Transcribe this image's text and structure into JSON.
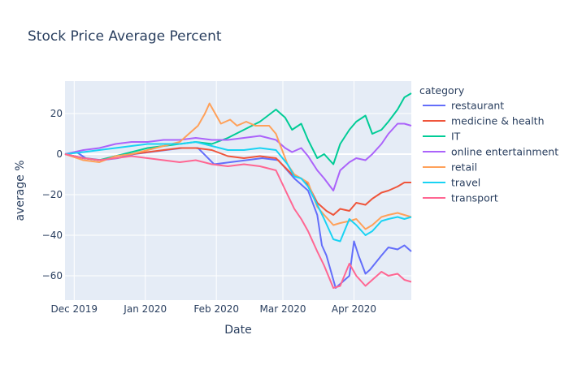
{
  "chart_data": {
    "type": "line",
    "title": "Stock Price Average Percent",
    "xlabel": "Date",
    "ylabel": "average %",
    "x_ticks": [
      {
        "date": "2019-12-01",
        "label": "Dec 2019"
      },
      {
        "date": "2020-01-01",
        "label": "Jan 2020"
      },
      {
        "date": "2020-02-01",
        "label": "Feb 2020"
      },
      {
        "date": "2020-03-01",
        "label": "Mar 2020"
      },
      {
        "date": "2020-04-01",
        "label": "Apr 2020"
      }
    ],
    "y_ticks": [
      20,
      0,
      -20,
      -40,
      -60
    ],
    "xlim": [
      "2019-11-27",
      "2020-04-26"
    ],
    "ylim": [
      -72,
      36
    ],
    "grid": true,
    "legend": {
      "title": "category",
      "position": "right"
    },
    "series": [
      {
        "name": "restaurant",
        "color": "#636efa",
        "points": [
          [
            "2019-11-27",
            0
          ],
          [
            "2019-12-02",
            1
          ],
          [
            "2019-12-06",
            -2
          ],
          [
            "2019-12-13",
            -3
          ],
          [
            "2019-12-20",
            -2
          ],
          [
            "2019-12-27",
            0
          ],
          [
            "2020-01-03",
            1
          ],
          [
            "2020-01-10",
            2
          ],
          [
            "2020-01-17",
            3
          ],
          [
            "2020-01-24",
            3
          ],
          [
            "2020-01-31",
            -5
          ],
          [
            "2020-02-07",
            -4
          ],
          [
            "2020-02-14",
            -3
          ],
          [
            "2020-02-21",
            -2
          ],
          [
            "2020-02-28",
            -3
          ],
          [
            "2020-03-06",
            -12
          ],
          [
            "2020-03-09",
            -15
          ],
          [
            "2020-03-12",
            -18
          ],
          [
            "2020-03-16",
            -30
          ],
          [
            "2020-03-18",
            -45
          ],
          [
            "2020-03-20",
            -50
          ],
          [
            "2020-03-23",
            -62
          ],
          [
            "2020-03-24",
            -66
          ],
          [
            "2020-03-27",
            -63
          ],
          [
            "2020-03-30",
            -60
          ],
          [
            "2020-04-01",
            -43
          ],
          [
            "2020-04-03",
            -50
          ],
          [
            "2020-04-06",
            -59
          ],
          [
            "2020-04-08",
            -57
          ],
          [
            "2020-04-13",
            -50
          ],
          [
            "2020-04-16",
            -46
          ],
          [
            "2020-04-20",
            -47
          ],
          [
            "2020-04-23",
            -45
          ],
          [
            "2020-04-26",
            -48
          ]
        ]
      },
      {
        "name": "medicine & health",
        "color": "#ef553b",
        "points": [
          [
            "2019-11-27",
            0
          ],
          [
            "2019-12-05",
            -2
          ],
          [
            "2019-12-12",
            -3
          ],
          [
            "2019-12-19",
            -1
          ],
          [
            "2019-12-26",
            0
          ],
          [
            "2020-01-02",
            1
          ],
          [
            "2020-01-09",
            2
          ],
          [
            "2020-01-16",
            3
          ],
          [
            "2020-01-23",
            3
          ],
          [
            "2020-01-30",
            2
          ],
          [
            "2020-02-06",
            -1
          ],
          [
            "2020-02-13",
            -2
          ],
          [
            "2020-02-20",
            -1
          ],
          [
            "2020-02-27",
            -2
          ],
          [
            "2020-03-05",
            -10
          ],
          [
            "2020-03-09",
            -12
          ],
          [
            "2020-03-12",
            -15
          ],
          [
            "2020-03-16",
            -24
          ],
          [
            "2020-03-18",
            -26
          ],
          [
            "2020-03-20",
            -28
          ],
          [
            "2020-03-23",
            -30
          ],
          [
            "2020-03-26",
            -27
          ],
          [
            "2020-03-30",
            -28
          ],
          [
            "2020-04-02",
            -24
          ],
          [
            "2020-04-06",
            -25
          ],
          [
            "2020-04-09",
            -22
          ],
          [
            "2020-04-13",
            -19
          ],
          [
            "2020-04-16",
            -18
          ],
          [
            "2020-04-20",
            -16
          ],
          [
            "2020-04-23",
            -14
          ],
          [
            "2020-04-26",
            -14
          ]
        ]
      },
      {
        "name": "IT",
        "color": "#00cc96",
        "points": [
          [
            "2019-11-27",
            0
          ],
          [
            "2019-12-05",
            -2
          ],
          [
            "2019-12-12",
            -3
          ],
          [
            "2019-12-19",
            -1
          ],
          [
            "2019-12-26",
            1
          ],
          [
            "2020-01-02",
            3
          ],
          [
            "2020-01-09",
            4
          ],
          [
            "2020-01-16",
            5
          ],
          [
            "2020-01-23",
            6
          ],
          [
            "2020-01-30",
            5
          ],
          [
            "2020-02-06",
            8
          ],
          [
            "2020-02-13",
            12
          ],
          [
            "2020-02-20",
            16
          ],
          [
            "2020-02-27",
            22
          ],
          [
            "2020-03-02",
            18
          ],
          [
            "2020-03-05",
            12
          ],
          [
            "2020-03-09",
            15
          ],
          [
            "2020-03-12",
            7
          ],
          [
            "2020-03-16",
            -2
          ],
          [
            "2020-03-19",
            0
          ],
          [
            "2020-03-23",
            -5
          ],
          [
            "2020-03-26",
            5
          ],
          [
            "2020-03-30",
            12
          ],
          [
            "2020-04-02",
            16
          ],
          [
            "2020-04-06",
            19
          ],
          [
            "2020-04-09",
            10
          ],
          [
            "2020-04-13",
            12
          ],
          [
            "2020-04-16",
            16
          ],
          [
            "2020-04-20",
            22
          ],
          [
            "2020-04-23",
            28
          ],
          [
            "2020-04-26",
            30
          ]
        ]
      },
      {
        "name": "online entertainment",
        "color": "#ab63fa",
        "points": [
          [
            "2019-11-27",
            0
          ],
          [
            "2019-12-05",
            2
          ],
          [
            "2019-12-12",
            3
          ],
          [
            "2019-12-19",
            5
          ],
          [
            "2019-12-26",
            6
          ],
          [
            "2020-01-02",
            6
          ],
          [
            "2020-01-09",
            7
          ],
          [
            "2020-01-16",
            7
          ],
          [
            "2020-01-23",
            8
          ],
          [
            "2020-01-30",
            7
          ],
          [
            "2020-02-06",
            7
          ],
          [
            "2020-02-13",
            8
          ],
          [
            "2020-02-20",
            9
          ],
          [
            "2020-02-27",
            7
          ],
          [
            "2020-03-02",
            3
          ],
          [
            "2020-03-05",
            1
          ],
          [
            "2020-03-09",
            3
          ],
          [
            "2020-03-12",
            -1
          ],
          [
            "2020-03-16",
            -8
          ],
          [
            "2020-03-19",
            -12
          ],
          [
            "2020-03-23",
            -18
          ],
          [
            "2020-03-26",
            -8
          ],
          [
            "2020-03-30",
            -4
          ],
          [
            "2020-04-02",
            -2
          ],
          [
            "2020-04-06",
            -3
          ],
          [
            "2020-04-09",
            0
          ],
          [
            "2020-04-13",
            5
          ],
          [
            "2020-04-16",
            10
          ],
          [
            "2020-04-20",
            15
          ],
          [
            "2020-04-23",
            15
          ],
          [
            "2020-04-26",
            14
          ]
        ]
      },
      {
        "name": "retail",
        "color": "#ffa15a",
        "points": [
          [
            "2019-11-27",
            0
          ],
          [
            "2019-12-05",
            -3
          ],
          [
            "2019-12-12",
            -4
          ],
          [
            "2019-12-19",
            -1
          ],
          [
            "2019-12-26",
            0
          ],
          [
            "2020-01-02",
            2
          ],
          [
            "2020-01-09",
            4
          ],
          [
            "2020-01-16",
            6
          ],
          [
            "2020-01-20",
            10
          ],
          [
            "2020-01-24",
            14
          ],
          [
            "2020-01-27",
            20
          ],
          [
            "2020-01-29",
            25
          ],
          [
            "2020-02-03",
            15
          ],
          [
            "2020-02-07",
            17
          ],
          [
            "2020-02-10",
            14
          ],
          [
            "2020-02-14",
            16
          ],
          [
            "2020-02-18",
            14
          ],
          [
            "2020-02-24",
            14
          ],
          [
            "2020-02-27",
            10
          ],
          [
            "2020-03-03",
            -5
          ],
          [
            "2020-03-06",
            -10
          ],
          [
            "2020-03-09",
            -12
          ],
          [
            "2020-03-12",
            -14
          ],
          [
            "2020-03-16",
            -26
          ],
          [
            "2020-03-19",
            -30
          ],
          [
            "2020-03-23",
            -35
          ],
          [
            "2020-03-26",
            -34
          ],
          [
            "2020-03-30",
            -33
          ],
          [
            "2020-04-02",
            -32
          ],
          [
            "2020-04-06",
            -37
          ],
          [
            "2020-04-09",
            -35
          ],
          [
            "2020-04-13",
            -31
          ],
          [
            "2020-04-16",
            -30
          ],
          [
            "2020-04-20",
            -29
          ],
          [
            "2020-04-23",
            -30
          ],
          [
            "2020-04-26",
            -31
          ]
        ]
      },
      {
        "name": "travel",
        "color": "#19d3f3",
        "points": [
          [
            "2019-11-27",
            0
          ],
          [
            "2019-12-05",
            1
          ],
          [
            "2019-12-12",
            2
          ],
          [
            "2019-12-19",
            3
          ],
          [
            "2019-12-26",
            4
          ],
          [
            "2020-01-02",
            5
          ],
          [
            "2020-01-09",
            5
          ],
          [
            "2020-01-16",
            5
          ],
          [
            "2020-01-23",
            6
          ],
          [
            "2020-01-30",
            4
          ],
          [
            "2020-02-06",
            2
          ],
          [
            "2020-02-13",
            2
          ],
          [
            "2020-02-20",
            3
          ],
          [
            "2020-02-27",
            2
          ],
          [
            "2020-03-03",
            -5
          ],
          [
            "2020-03-06",
            -11
          ],
          [
            "2020-03-09",
            -12
          ],
          [
            "2020-03-12",
            -16
          ],
          [
            "2020-03-16",
            -25
          ],
          [
            "2020-03-19",
            -32
          ],
          [
            "2020-03-23",
            -42
          ],
          [
            "2020-03-26",
            -43
          ],
          [
            "2020-03-30",
            -32
          ],
          [
            "2020-04-02",
            -35
          ],
          [
            "2020-04-06",
            -40
          ],
          [
            "2020-04-09",
            -38
          ],
          [
            "2020-04-13",
            -33
          ],
          [
            "2020-04-16",
            -32
          ],
          [
            "2020-04-20",
            -31
          ],
          [
            "2020-04-23",
            -32
          ],
          [
            "2020-04-26",
            -31
          ]
        ]
      },
      {
        "name": "transport",
        "color": "#ff6692",
        "points": [
          [
            "2019-11-27",
            0
          ],
          [
            "2019-12-05",
            -2
          ],
          [
            "2019-12-12",
            -3
          ],
          [
            "2019-12-19",
            -2
          ],
          [
            "2019-12-26",
            -1
          ],
          [
            "2020-01-02",
            -2
          ],
          [
            "2020-01-09",
            -3
          ],
          [
            "2020-01-16",
            -4
          ],
          [
            "2020-01-23",
            -3
          ],
          [
            "2020-01-30",
            -5
          ],
          [
            "2020-02-06",
            -6
          ],
          [
            "2020-02-13",
            -5
          ],
          [
            "2020-02-20",
            -6
          ],
          [
            "2020-02-27",
            -8
          ],
          [
            "2020-03-03",
            -20
          ],
          [
            "2020-03-06",
            -27
          ],
          [
            "2020-03-09",
            -32
          ],
          [
            "2020-03-12",
            -38
          ],
          [
            "2020-03-16",
            -48
          ],
          [
            "2020-03-19",
            -55
          ],
          [
            "2020-03-23",
            -66
          ],
          [
            "2020-03-26",
            -65
          ],
          [
            "2020-03-30",
            -54
          ],
          [
            "2020-04-02",
            -60
          ],
          [
            "2020-04-06",
            -65
          ],
          [
            "2020-04-09",
            -62
          ],
          [
            "2020-04-13",
            -58
          ],
          [
            "2020-04-16",
            -60
          ],
          [
            "2020-04-20",
            -59
          ],
          [
            "2020-04-23",
            -62
          ],
          [
            "2020-04-26",
            -63
          ]
        ]
      }
    ]
  }
}
